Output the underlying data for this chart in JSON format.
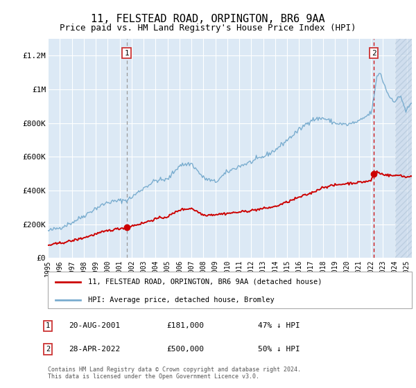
{
  "title": "11, FELSTEAD ROAD, ORPINGTON, BR6 9AA",
  "subtitle": "Price paid vs. HM Land Registry's House Price Index (HPI)",
  "title_fontsize": 11,
  "subtitle_fontsize": 9,
  "ylim": [
    0,
    1300000
  ],
  "yticks": [
    0,
    200000,
    400000,
    600000,
    800000,
    1000000,
    1200000
  ],
  "ytick_labels": [
    "£0",
    "£200K",
    "£400K",
    "£600K",
    "£800K",
    "£1M",
    "£1.2M"
  ],
  "bg_color": "#dce9f5",
  "grid_color": "#ffffff",
  "red_line_color": "#cc0000",
  "blue_line_color": "#7aadcf",
  "marker1_price": 181000,
  "marker2_price": 500000,
  "sale1_date": "20-AUG-2001",
  "sale1_price": "£181,000",
  "sale1_hpi": "47% ↓ HPI",
  "sale2_date": "28-APR-2022",
  "sale2_price": "£500,000",
  "sale2_hpi": "50% ↓ HPI",
  "legend_label1": "11, FELSTEAD ROAD, ORPINGTON, BR6 9AA (detached house)",
  "legend_label2": "HPI: Average price, detached house, Bromley",
  "footer": "Contains HM Land Registry data © Crown copyright and database right 2024.\nThis data is licensed under the Open Government Licence v3.0.",
  "year_start": 1995,
  "year_end": 2025
}
